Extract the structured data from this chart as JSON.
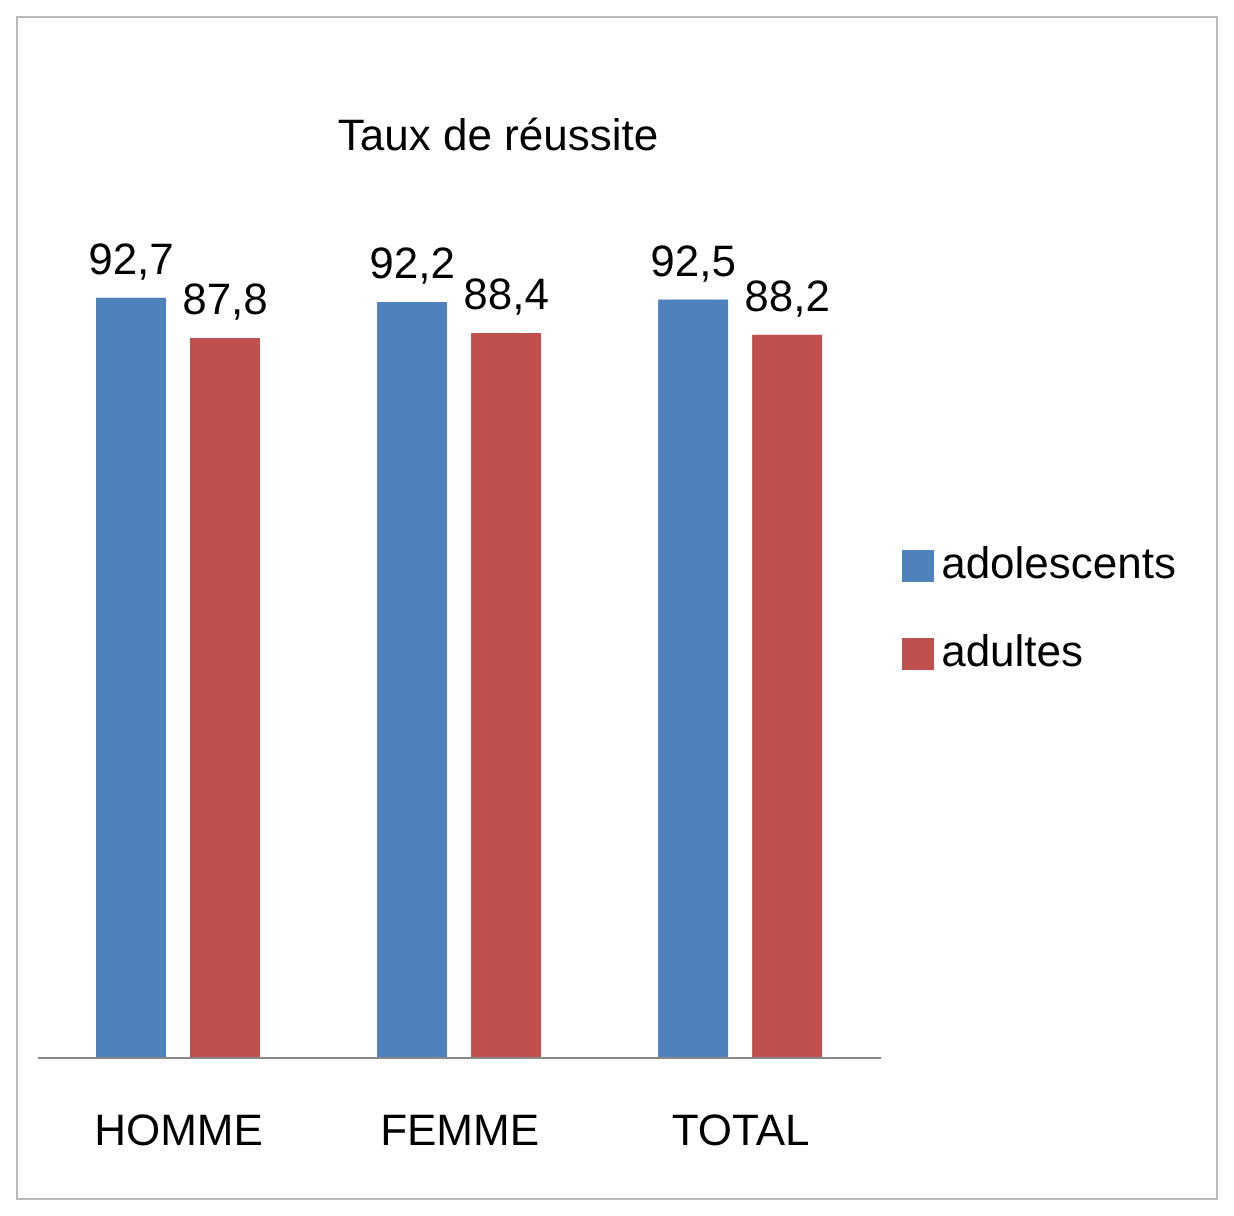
{
  "chart_data": {
    "type": "bar",
    "title": "Taux de réussite",
    "categories": [
      "HOMME",
      "FEMME",
      "TOTAL"
    ],
    "series": [
      {
        "name": "adolescents",
        "color": "#4f81bd",
        "values": [
          92.7,
          92.2,
          92.5
        ],
        "value_labels": [
          "92,7",
          "92,2",
          "92,5"
        ]
      },
      {
        "name": "adultes",
        "color": "#c0504d",
        "values": [
          87.8,
          88.4,
          88.2
        ],
        "value_labels": [
          "87,8",
          "88,4",
          "88,2"
        ]
      }
    ],
    "tick_labels": "x",
    "legend": "right"
  }
}
